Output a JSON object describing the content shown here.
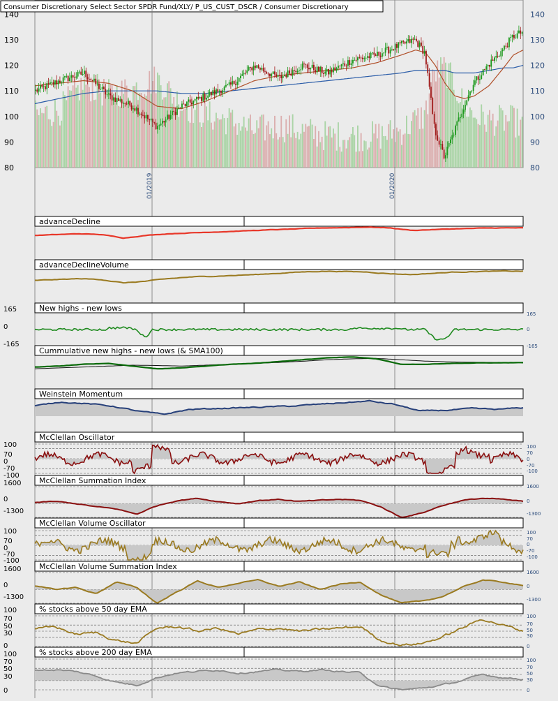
{
  "title": "Consumer Discretionary Select Sector SPDR Fund/XLY/ P_US_CUST_DSCR / Consumer Discretionary",
  "colors": {
    "background": "#ebebeb",
    "candle_up": "#1e9a1e",
    "candle_down": "#a01818",
    "volume_up": "#9fd09a",
    "volume_down": "#d8a4a4",
    "sma_fast": "#b0502a",
    "sma_slow": "#2a5ca8",
    "axis_text": "#2a4a7a"
  },
  "date_labels": [
    "01/2019",
    "01/2020"
  ],
  "chart_data": [
    {
      "type": "line",
      "title": "Consumer Discretionary Select Sector SPDR Fund/XLY/ P_US_CUST_DSCR / Consumer Discretionary",
      "subtype": "candlestick with volume bars and two moving averages",
      "ylim": [
        80,
        145
      ],
      "yticks": [
        80,
        90,
        100,
        110,
        120,
        130,
        140
      ],
      "x_ticks": [
        "01/2019",
        "01/2020"
      ],
      "keypoints": {
        "t": [
          0,
          0.05,
          0.1,
          0.15,
          0.2,
          0.25,
          0.3,
          0.35,
          0.4,
          0.45,
          0.5,
          0.55,
          0.6,
          0.65,
          0.7,
          0.75,
          0.78,
          0.8,
          0.82,
          0.84,
          0.86,
          0.88,
          0.9,
          0.93,
          0.96,
          0.98,
          1
        ],
        "close": [
          110,
          114,
          117,
          108,
          104,
          96,
          104,
          108,
          112,
          120,
          115,
          120,
          117,
          122,
          124,
          128,
          130,
          125,
          95,
          84,
          94,
          104,
          113,
          120,
          126,
          131,
          133
        ]
      },
      "sma_fast_kp": [
        112,
        113,
        114,
        113,
        110,
        104,
        103,
        106,
        110,
        114,
        116,
        117,
        118,
        119,
        121,
        124,
        126,
        125,
        120,
        113,
        108,
        107,
        108,
        112,
        119,
        124,
        126
      ],
      "sma_slow_kp": [
        105,
        107,
        109,
        110,
        110,
        110,
        109,
        109,
        110,
        111,
        112,
        113,
        114,
        115,
        116,
        117,
        118,
        118,
        118,
        118,
        117,
        117,
        117,
        118,
        119,
        119,
        120
      ],
      "volume_kp": [
        0.5,
        0.55,
        0.8,
        0.7,
        0.75,
        0.85,
        0.6,
        0.5,
        0.45,
        0.35,
        0.4,
        0.35,
        0.3,
        0.3,
        0.3,
        0.35,
        0.45,
        0.5,
        0.9,
        0.95,
        0.8,
        0.6,
        0.5,
        0.45,
        0.45,
        0.45,
        0.4
      ]
    },
    {
      "type": "line",
      "title": "advanceDecline",
      "keypoints": [
        0.45,
        0.5,
        0.55,
        0.5,
        0.3,
        0.45,
        0.55,
        0.6,
        0.65,
        0.7,
        0.75,
        0.8,
        0.85,
        0.9,
        0.92,
        0.95,
        0.9,
        0.75,
        0.8,
        0.85,
        0.88,
        0.9,
        0.9
      ]
    },
    {
      "type": "line",
      "title": "advanceDeclineVolume",
      "keypoints": [
        0.35,
        0.4,
        0.45,
        0.4,
        0.2,
        0.3,
        0.45,
        0.55,
        0.6,
        0.65,
        0.7,
        0.78,
        0.85,
        0.9,
        0.88,
        0.85,
        0.75,
        0.7,
        0.78,
        0.85,
        0.88,
        0.9,
        0.9
      ]
    },
    {
      "type": "line",
      "title": "New highs - new lows",
      "ylim": [
        -165,
        165
      ],
      "y_labels": [
        "165",
        "0",
        "-165"
      ]
    },
    {
      "type": "line",
      "title": "Cummulative new highs - new lows (& SMA100)",
      "keypoints": [
        0.4,
        0.45,
        0.55,
        0.6,
        0.45,
        0.3,
        0.35,
        0.45,
        0.55,
        0.6,
        0.7,
        0.8,
        0.9,
        0.95,
        0.85,
        0.55,
        0.55,
        0.6,
        0.62,
        0.63,
        0.64
      ],
      "sma_keypoints": [
        0.3,
        0.35,
        0.4,
        0.45,
        0.5,
        0.48,
        0.45,
        0.5,
        0.55,
        0.6,
        0.65,
        0.72,
        0.8,
        0.85,
        0.87,
        0.8,
        0.72,
        0.68,
        0.66,
        0.65,
        0.64
      ]
    },
    {
      "type": "area",
      "title": "Weinstein Momentum",
      "keypoints": [
        0.6,
        0.85,
        0.75,
        0.6,
        0.3,
        0.1,
        0.4,
        0.45,
        0.5,
        0.55,
        0.6,
        0.7,
        0.8,
        0.9,
        0.7,
        0.3,
        0.35,
        0.45,
        0.4,
        0.5
      ]
    },
    {
      "type": "area",
      "title": "McClellan Oscillator",
      "ylim": [
        -100,
        100
      ],
      "y_labels_left": [
        "100",
        "70",
        "0",
        "-70",
        "-100"
      ],
      "y_labels_right": [
        "100",
        "70",
        "0",
        "-70",
        "-100"
      ]
    },
    {
      "type": "area",
      "title": "McClellan Summation Index",
      "ylim": [
        -1300,
        1600
      ],
      "y_labels_left": [
        "1600",
        "0",
        "-1300"
      ],
      "y_labels_right": [
        "1600",
        "0",
        "-1300"
      ],
      "keypoints": [
        100,
        200,
        0,
        -300,
        -500,
        -1000,
        -200,
        300,
        500,
        200,
        0,
        300,
        400,
        200,
        300,
        400,
        300,
        -300,
        -1300,
        -900,
        -200,
        300,
        500,
        400,
        200
      ]
    },
    {
      "type": "area",
      "title": "McClellan Volume Oscillator",
      "ylim": [
        -100,
        100
      ],
      "y_labels_left": [
        "100",
        "70",
        "0",
        "-70",
        "-100"
      ],
      "y_labels_right": [
        "100",
        "70",
        "0",
        "-70",
        "-100"
      ]
    },
    {
      "type": "area",
      "title": "McClellan Volume Summation Index",
      "ylim": [
        -1300,
        1600
      ],
      "y_labels_left": [
        "1600",
        "0",
        "-1300"
      ],
      "y_labels_right": [
        "1600",
        "0",
        "-1300"
      ],
      "keypoints": [
        300,
        0,
        200,
        -400,
        700,
        200,
        -1300,
        -200,
        800,
        200,
        600,
        900,
        300,
        700,
        0,
        500,
        700,
        -500,
        -1300,
        -1100,
        -700,
        200,
        900,
        700,
        400
      ]
    },
    {
      "type": "line",
      "title": "% stocks above 50 day EMA",
      "ylim": [
        0,
        100
      ],
      "y_labels_left": [
        "100",
        "70",
        "50",
        "30",
        "0"
      ],
      "y_labels_right": [
        "100",
        "70",
        "50",
        "30",
        "0"
      ],
      "keypoints": [
        55,
        65,
        40,
        45,
        20,
        10,
        60,
        65,
        50,
        60,
        40,
        55,
        60,
        50,
        55,
        60,
        65,
        20,
        5,
        10,
        30,
        60,
        90,
        70,
        50
      ]
    },
    {
      "type": "area",
      "title": "% stocks above 200 day EMA",
      "ylim": [
        0,
        100
      ],
      "y_labels_left": [
        "100",
        "70",
        "50",
        "30",
        "0"
      ],
      "y_labels_right": [
        "100",
        "70",
        "50",
        "30",
        "0"
      ],
      "keypoints": [
        65,
        65,
        60,
        45,
        25,
        15,
        40,
        55,
        60,
        65,
        55,
        60,
        65,
        60,
        65,
        60,
        55,
        10,
        0,
        5,
        15,
        30,
        50,
        40,
        35
      ]
    }
  ]
}
